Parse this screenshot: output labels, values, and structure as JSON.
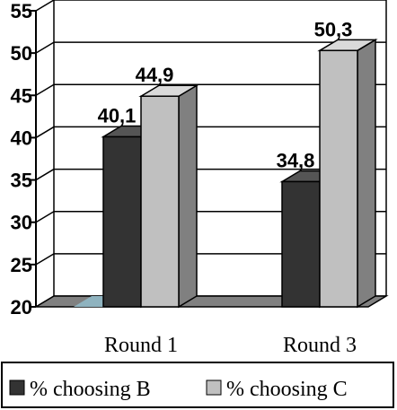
{
  "chart_data": {
    "type": "bar",
    "categories": [
      "Round 1",
      "Round 3"
    ],
    "series": [
      {
        "name": "% choosing B",
        "values": [
          40.1,
          34.8
        ],
        "labels": [
          "40,1",
          "34,8"
        ],
        "color": "#333333",
        "side_color": "#222222",
        "top_color": "#555555"
      },
      {
        "name": "% choosing C",
        "values": [
          44.9,
          50.3
        ],
        "labels": [
          "44,9",
          "50,3"
        ],
        "color": "#c0c0c0",
        "side_color": "#808080",
        "top_color": "#dadada"
      }
    ],
    "ylim": [
      20,
      55
    ],
    "yticks": [
      20,
      25,
      30,
      35,
      40,
      45,
      50,
      55
    ],
    "ytick_labels": [
      "20",
      "25",
      "30",
      "35",
      "40",
      "45",
      "50",
      "55"
    ],
    "grid": true,
    "legend": "bottom",
    "floor_color": "#808080",
    "floor_accent_color": "#8fb3bf",
    "xlabel": "",
    "ylabel": "",
    "title": ""
  }
}
